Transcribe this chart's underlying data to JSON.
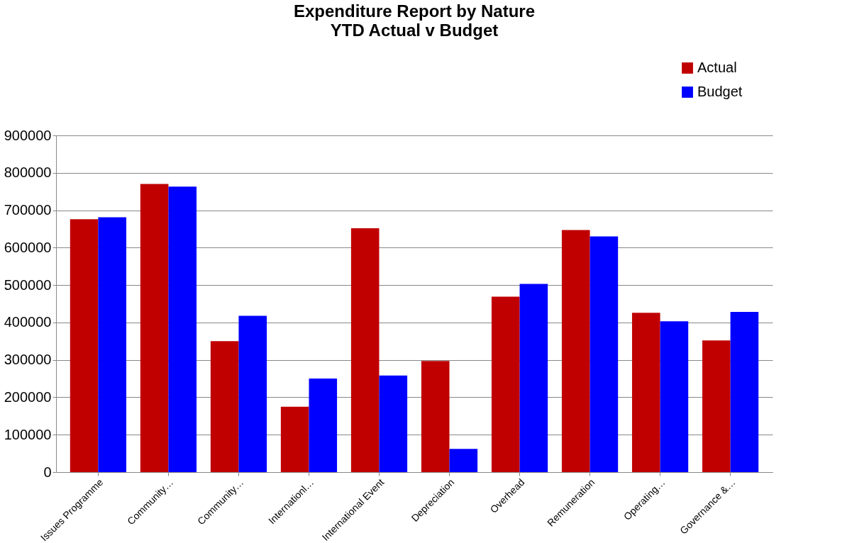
{
  "chart_data": {
    "type": "bar",
    "title": "Expenditure Report by Nature",
    "subtitle": "YTD Actual v Budget",
    "categories": [
      "Issues Programme",
      "Community…",
      "Community…",
      "Internationl…",
      "International Event",
      "Depreciation",
      "Overhead",
      "Remuneration",
      "Operating…",
      "Governance &…"
    ],
    "series": [
      {
        "name": "Actual",
        "color": "#c00000",
        "values": [
          676000,
          770000,
          350000,
          175000,
          652000,
          297000,
          469000,
          647000,
          426000,
          352000
        ]
      },
      {
        "name": "Budget",
        "color": "#0000ff",
        "values": [
          681000,
          763000,
          418000,
          250000,
          258000,
          62000,
          503000,
          630000,
          403000,
          428000
        ]
      }
    ],
    "ylim": [
      0,
      900000
    ],
    "yticks": [
      0,
      100000,
      200000,
      300000,
      400000,
      500000,
      600000,
      700000,
      800000,
      900000
    ],
    "grid": "y",
    "legend": "top right"
  }
}
